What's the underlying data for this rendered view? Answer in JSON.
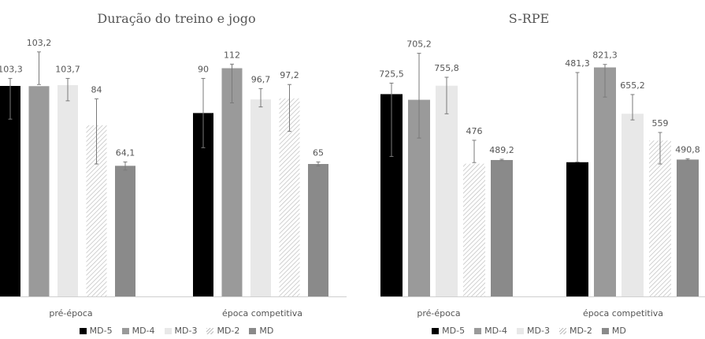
{
  "legend": [
    "MD-5",
    "MD-4",
    "MD-3",
    "MD-2",
    "MD"
  ],
  "colors": [
    "#000000",
    "#9a9a9a",
    "#e8e8e8",
    "hatch",
    "#8a8a8a"
  ],
  "chart_data": [
    {
      "type": "bar",
      "title": "Duração do treino e jogo",
      "categories": [
        "pré-época",
        "época competitiva"
      ],
      "ylim": [
        0,
        130
      ],
      "series": [
        {
          "name": "MD-5",
          "values": [
            103.3,
            90
          ],
          "labels": [
            "103,3",
            "90"
          ],
          "err": [
            [
              87,
              107
            ],
            [
              73,
              107
            ]
          ]
        },
        {
          "name": "MD-4",
          "values": [
            103.2,
            112
          ],
          "labels": [
            "103,2",
            "112"
          ],
          "err": [
            [
              104,
              120
            ],
            [
              95,
              114
            ]
          ]
        },
        {
          "name": "MD-3",
          "values": [
            103.7,
            96.7
          ],
          "labels": [
            "103,7",
            "96,7"
          ],
          "err": [
            [
              96,
              107
            ],
            [
              93,
              102
            ]
          ]
        },
        {
          "name": "MD-2",
          "values": [
            84,
            97.2
          ],
          "labels": [
            "84",
            "97,2"
          ],
          "err": [
            [
              65,
              97
            ],
            [
              81,
              104
            ]
          ]
        },
        {
          "name": "MD",
          "values": [
            64.1,
            65
          ],
          "labels": [
            "64,1",
            "65"
          ],
          "err": [
            [
              62,
              66
            ],
            [
              64,
              66
            ]
          ]
        }
      ]
    },
    {
      "type": "bar",
      "title": "S-RPE",
      "categories": [
        "pré-época",
        "época competitiva"
      ],
      "ylim": [
        0,
        950
      ],
      "series": [
        {
          "name": "MD-5",
          "values": [
            725.5,
            481.3
          ],
          "labels": [
            "725,5",
            "481,3"
          ],
          "err": [
            [
              502,
              765
            ],
            [
              482,
              803
            ]
          ]
        },
        {
          "name": "MD-4",
          "values": [
            705.2,
            821.3
          ],
          "labels": [
            "705,2",
            "821,3"
          ],
          "err": [
            [
              568,
              872
            ],
            [
              715,
              832
            ]
          ]
        },
        {
          "name": "MD-3",
          "values": [
            755.8,
            655.2
          ],
          "labels": [
            "755,8",
            "655,2"
          ],
          "err": [
            [
              655,
              786
            ],
            [
              633,
              724
            ]
          ]
        },
        {
          "name": "MD-2",
          "values": [
            476,
            559
          ],
          "labels": [
            "476",
            "559"
          ],
          "err": [
            [
              480,
              560
            ],
            [
              475,
              588
            ]
          ]
        },
        {
          "name": "MD",
          "values": [
            489.2,
            490.8
          ],
          "labels": [
            "489,2",
            "490,8"
          ],
          "err": [
            [
              487,
              492
            ],
            [
              488,
              494
            ]
          ]
        }
      ]
    }
  ]
}
